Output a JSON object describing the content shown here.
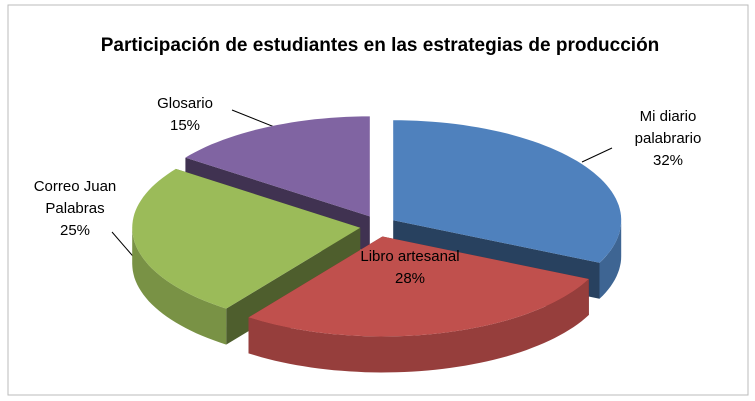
{
  "chart_data": {
    "type": "pie",
    "title": "Participación de estudiantes en las estrategias de producción",
    "categories": [
      "Mi diario palabrario",
      "Libro artesanal",
      "Correo Juan Palabras",
      "Glosario"
    ],
    "values": [
      32,
      28,
      25,
      15
    ],
    "value_labels": [
      "32%",
      "28%",
      "25%",
      "15%"
    ],
    "colors": [
      "#4f81bd",
      "#c0504d",
      "#9bbb59",
      "#8064a2"
    ]
  }
}
